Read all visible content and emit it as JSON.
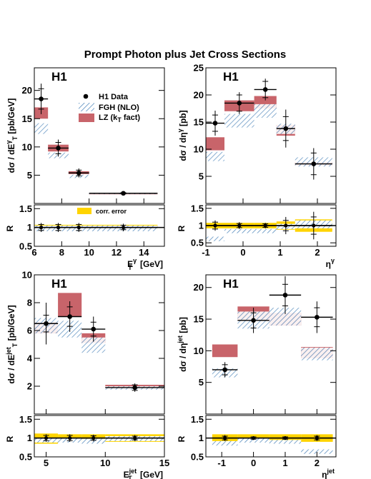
{
  "title": "Prompt Photon plus Jet Cross Sections",
  "colors": {
    "lz": "#c8646a",
    "fgh_line": "#5b8fc0",
    "corr": "#ffd400",
    "data": "#000000"
  },
  "legend": {
    "data": "H1 Data",
    "fgh": "FGH (NLO)",
    "lz_main": "LZ (k",
    "lz_sub": "T",
    "lz_end": " fact)",
    "corr": "corr. error"
  },
  "chart_data": [
    {
      "id": "et-gamma",
      "type": "scatter",
      "label": "H1",
      "xlabel": "E",
      "xlabel_sub": "T",
      "xlabel_sup": "γ",
      "xlabel_unit": " [GeV]",
      "ylabel": "dσ / dE",
      "ylabel_sub": "T",
      "ylabel_sup": "γ",
      "ylabel_unit": " [pb/GeV]",
      "xlim": [
        6,
        15.5
      ],
      "ylim": [
        0,
        24
      ],
      "xticks": [
        6,
        8,
        10,
        12,
        14
      ],
      "yticks": [
        5,
        10,
        15,
        20
      ],
      "bins": [
        [
          6,
          7
        ],
        [
          7,
          8.5
        ],
        [
          8.5,
          10
        ],
        [
          10,
          15
        ]
      ],
      "data": [
        {
          "y": 18.5,
          "stat": 1.8,
          "tot": 2.7
        },
        {
          "y": 9.8,
          "stat": 1.0,
          "tot": 1.5
        },
        {
          "y": 5.4,
          "stat": 0.5,
          "tot": 0.8
        },
        {
          "y": 1.8,
          "stat": 0.1,
          "tot": 0.15
        }
      ],
      "fgh": [
        [
          12.3,
          14.2
        ],
        [
          8.0,
          9.0
        ],
        [
          4.5,
          5.1
        ],
        [
          1.65,
          1.85
        ]
      ],
      "lz": [
        [
          15.0,
          17.0
        ],
        [
          9.2,
          10.4
        ],
        [
          5.2,
          5.7
        ],
        [
          1.7,
          1.8
        ]
      ],
      "ratio": {
        "ylim": [
          0.5,
          1.6
        ],
        "yticks": [
          0.5,
          1,
          1.5
        ],
        "corr": [
          [
            0.93,
            1.07
          ],
          [
            0.93,
            1.07
          ],
          [
            0.93,
            1.07
          ],
          [
            0.93,
            1.07
          ]
        ],
        "data": [
          {
            "y": 1.0,
            "stat": 0.08,
            "tot": 0.12
          },
          {
            "y": 1.0,
            "stat": 0.08,
            "tot": 0.12
          },
          {
            "y": 1.0,
            "stat": 0.08,
            "tot": 0.12
          },
          {
            "y": 1.0,
            "stat": 0.06,
            "tot": 0.1
          }
        ],
        "fgh": [
          [
            0.9,
            1.05
          ],
          [
            0.9,
            1.05
          ],
          [
            0.9,
            1.05
          ],
          [
            0.9,
            1.05
          ]
        ]
      }
    },
    {
      "id": "eta-gamma",
      "type": "scatter",
      "label": "H1",
      "xlabel": "η",
      "xlabel_sub": "",
      "xlabel_sup": "γ",
      "xlabel_unit": "",
      "ylabel": "dσ / dη",
      "ylabel_sub": "",
      "ylabel_sup": "γ",
      "ylabel_unit": " [pb]",
      "xlim": [
        -1,
        2.5
      ],
      "ylim": [
        0,
        25
      ],
      "xticks": [
        -1,
        0,
        1,
        2
      ],
      "yticks": [
        5,
        10,
        15,
        20,
        25
      ],
      "bins": [
        [
          -1,
          -0.5
        ],
        [
          -0.5,
          0.3
        ],
        [
          0.3,
          0.9
        ],
        [
          0.9,
          1.4
        ],
        [
          1.4,
          2.4
        ]
      ],
      "data": [
        {
          "y": 14.8,
          "stat": 1.5,
          "tot": 2.3
        },
        {
          "y": 18.5,
          "stat": 1.5,
          "tot": 2.0
        },
        {
          "y": 21.0,
          "stat": 1.5,
          "tot": 2.0
        },
        {
          "y": 13.8,
          "stat": 2.2,
          "tot": 3.5
        },
        {
          "y": 7.3,
          "stat": 2.0,
          "tot": 2.9
        }
      ],
      "fgh": [
        [
          7.8,
          9.5
        ],
        [
          14.0,
          16.5
        ],
        [
          15.8,
          18.3
        ],
        [
          12.8,
          14.7
        ],
        [
          6.8,
          8.5
        ]
      ],
      "lz": [
        [
          9.8,
          12.2
        ],
        [
          17.0,
          19.0
        ],
        [
          17.5,
          19.8
        ],
        [
          12.5,
          14.5
        ],
        [
          7.0,
          7.6
        ]
      ],
      "ratio": {
        "ylim": [
          0.4,
          1.6
        ],
        "yticks": [
          0.5,
          1,
          1.5
        ],
        "corr": [
          [
            0.92,
            1.08
          ],
          [
            0.92,
            1.08
          ],
          [
            0.92,
            1.08
          ],
          [
            0.88,
            1.12
          ],
          [
            0.82,
            1.18
          ]
        ],
        "data": [
          {
            "y": 1.0,
            "stat": 0.1,
            "tot": 0.15
          },
          {
            "y": 1.0,
            "stat": 0.06,
            "tot": 0.1
          },
          {
            "y": 1.0,
            "stat": 0.05,
            "tot": 0.08
          },
          {
            "y": 1.0,
            "stat": 0.15,
            "tot": 0.25
          },
          {
            "y": 1.0,
            "stat": 0.25,
            "tot": 0.4
          }
        ],
        "fgh": [
          [
            0.55,
            0.68
          ],
          [
            0.78,
            0.9
          ],
          [
            0.78,
            0.9
          ],
          [
            0.9,
            1.05
          ],
          [
            0.92,
            1.15
          ]
        ]
      }
    },
    {
      "id": "et-jet",
      "type": "scatter",
      "label": "H1",
      "xlabel": "E",
      "xlabel_sub": "T",
      "xlabel_sup": "jet",
      "xlabel_unit": " [GeV]",
      "ylabel": "dσ / dE",
      "ylabel_sub": "T",
      "ylabel_sup": "jet",
      "ylabel_unit": " [pb/GeV]",
      "xlim": [
        4,
        15
      ],
      "ylim": [
        0,
        10
      ],
      "xticks": [
        5,
        10,
        15
      ],
      "yticks": [
        2,
        4,
        6,
        8,
        10
      ],
      "bins": [
        [
          4,
          6
        ],
        [
          6,
          8
        ],
        [
          8,
          10
        ],
        [
          10,
          15
        ]
      ],
      "data": [
        {
          "y": 6.5,
          "stat": 0.6,
          "tot": 1.5
        },
        {
          "y": 7.0,
          "stat": 0.7,
          "tot": 1.1
        },
        {
          "y": 6.1,
          "stat": 0.5,
          "tot": 0.9
        },
        {
          "y": 1.9,
          "stat": 0.2,
          "tot": 0.3
        }
      ],
      "fgh": [
        [
          5.8,
          6.9
        ],
        [
          5.5,
          6.7
        ],
        [
          4.4,
          5.5
        ],
        [
          1.75,
          2.0
        ]
      ],
      "lz": [
        [
          5.8,
          6.6
        ],
        [
          7.0,
          8.7
        ],
        [
          5.1,
          5.8
        ],
        [
          1.85,
          2.1
        ]
      ],
      "ratio": {
        "ylim": [
          0.5,
          1.6
        ],
        "yticks": [
          0.5,
          1,
          1.5
        ],
        "corr": [
          [
            0.85,
            1.12
          ],
          [
            0.9,
            1.1
          ],
          [
            0.9,
            1.1
          ],
          [
            0.9,
            1.1
          ]
        ],
        "data": [
          {
            "y": 1.0,
            "stat": 0.07,
            "tot": 0.1
          },
          {
            "y": 1.0,
            "stat": 0.07,
            "tot": 0.1
          },
          {
            "y": 1.0,
            "stat": 0.06,
            "tot": 0.09
          },
          {
            "y": 1.0,
            "stat": 0.05,
            "tot": 0.08
          }
        ],
        "fgh": [
          [
            0.88,
            1.0
          ],
          [
            0.88,
            1.0
          ],
          [
            0.85,
            0.98
          ],
          [
            0.92,
            1.05
          ]
        ]
      }
    },
    {
      "id": "eta-jet",
      "type": "scatter",
      "label": "H1",
      "xlabel": "η",
      "xlabel_sub": "",
      "xlabel_sup": "jet",
      "xlabel_unit": "",
      "ylabel": "dσ / dη",
      "ylabel_sub": "",
      "ylabel_sup": "jet",
      "ylabel_unit": " [pb]",
      "xlim": [
        -1.5,
        2.6
      ],
      "ylim": [
        0,
        22
      ],
      "xticks": [
        -1,
        0,
        1,
        2
      ],
      "yticks": [
        5,
        10,
        15,
        20
      ],
      "bins": [
        [
          -1.3,
          -0.5
        ],
        [
          -0.5,
          0.5
        ],
        [
          0.5,
          1.5
        ],
        [
          1.5,
          2.5
        ]
      ],
      "data": [
        {
          "y": 7.0,
          "stat": 0.8,
          "tot": 1.2
        },
        {
          "y": 14.8,
          "stat": 1.2,
          "tot": 2.0
        },
        {
          "y": 18.8,
          "stat": 1.7,
          "tot": 3.0
        },
        {
          "y": 15.3,
          "stat": 1.5,
          "tot": 2.5
        }
      ],
      "fgh": [
        [
          5.8,
          7.2
        ],
        [
          13.5,
          16.2
        ],
        [
          14.0,
          16.8
        ],
        [
          8.5,
          10.5
        ]
      ],
      "lz": [
        [
          9.0,
          11.0
        ],
        [
          14.8,
          17.0
        ],
        [
          14.0,
          16.0
        ],
        [
          8.8,
          10.6
        ]
      ],
      "ratio": {
        "ylim": [
          0.5,
          1.6
        ],
        "yticks": [
          0.5,
          1,
          1.5
        ],
        "corr": [
          [
            0.9,
            1.1
          ],
          [
            0.9,
            1.1
          ],
          [
            0.9,
            1.1
          ],
          [
            0.9,
            1.1
          ]
        ],
        "data": [
          {
            "y": 1.0,
            "stat": 0.05,
            "tot": 0.08
          },
          {
            "y": 1.0,
            "stat": 0.03,
            "tot": 0.05
          },
          {
            "y": 1.0,
            "stat": 0.03,
            "tot": 0.05
          },
          {
            "y": 1.0,
            "stat": 0.05,
            "tot": 0.08
          }
        ],
        "fgh": [
          [
            0.8,
            0.92
          ],
          [
            0.88,
            1.0
          ],
          [
            0.85,
            0.95
          ],
          [
            0.58,
            0.7
          ]
        ]
      }
    }
  ]
}
